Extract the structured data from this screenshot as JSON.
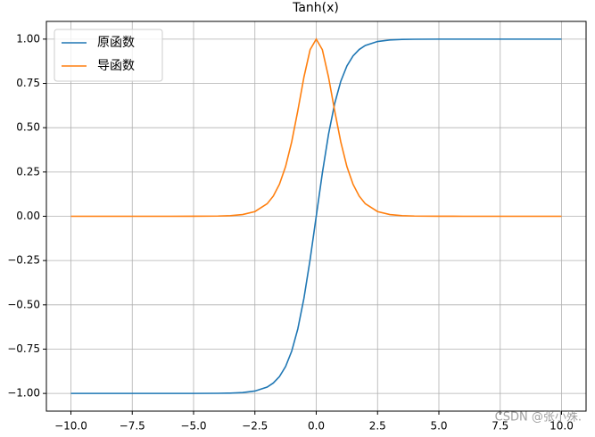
{
  "chart_data": {
    "type": "line",
    "title": "Tanh(x)",
    "x": [
      -10,
      -9,
      -8,
      -7,
      -6,
      -5,
      -4,
      -3.5,
      -3,
      -2.5,
      -2,
      -1.75,
      -1.5,
      -1.25,
      -1,
      -0.75,
      -0.5,
      -0.25,
      0,
      0.25,
      0.5,
      0.75,
      1,
      1.25,
      1.5,
      1.75,
      2,
      2.5,
      3,
      3.5,
      4,
      5,
      6,
      7,
      8,
      9,
      10
    ],
    "series": [
      {
        "name": "原函数",
        "color": "#1f77b4",
        "values": [
          -1,
          -1,
          -1,
          -1,
          -1,
          -0.9999,
          -0.9993,
          -0.9982,
          -0.9951,
          -0.9866,
          -0.964,
          -0.9413,
          -0.9051,
          -0.8483,
          -0.7616,
          -0.6351,
          -0.4621,
          -0.2449,
          0,
          0.2449,
          0.4621,
          0.6351,
          0.7616,
          0.8483,
          0.9051,
          0.9413,
          0.964,
          0.9866,
          0.9951,
          0.9982,
          0.9993,
          0.9999,
          1,
          1,
          1,
          1,
          1
        ]
      },
      {
        "name": "导函数",
        "color": "#ff7f0e",
        "values": [
          0,
          0,
          0,
          0,
          0,
          0.0002,
          0.0013,
          0.0036,
          0.0099,
          0.0266,
          0.0707,
          0.114,
          0.1807,
          0.2804,
          0.42,
          0.5966,
          0.7864,
          0.94,
          1,
          0.94,
          0.7864,
          0.5966,
          0.42,
          0.2804,
          0.1807,
          0.114,
          0.0707,
          0.0266,
          0.0099,
          0.0036,
          0.0013,
          0.0002,
          0,
          0,
          0,
          0,
          0
        ]
      }
    ],
    "xlim": [
      -11,
      11
    ],
    "ylim": [
      -1.1,
      1.1
    ],
    "xticks": [
      {
        "value": -10,
        "label": "−10.0"
      },
      {
        "value": -7.5,
        "label": "−7.5"
      },
      {
        "value": -5,
        "label": "−5.0"
      },
      {
        "value": -2.5,
        "label": "−2.5"
      },
      {
        "value": 0,
        "label": "0.0"
      },
      {
        "value": 2.5,
        "label": "2.5"
      },
      {
        "value": 5,
        "label": "5.0"
      },
      {
        "value": 7.5,
        "label": "7.5"
      },
      {
        "value": 10,
        "label": "10.0"
      }
    ],
    "yticks": [
      {
        "value": -1,
        "label": "−1.00"
      },
      {
        "value": -0.75,
        "label": "−0.75"
      },
      {
        "value": -0.5,
        "label": "−0.50"
      },
      {
        "value": -0.25,
        "label": "−0.25"
      },
      {
        "value": 0,
        "label": "0.00"
      },
      0.25,
      {
        "value": 0.5,
        "label": "0.50"
      },
      0.75,
      {
        "value": 1,
        "label": "1.00"
      }
    ],
    "grid": true,
    "legend": "upper-left",
    "watermark": "CSDN @张小殊."
  }
}
